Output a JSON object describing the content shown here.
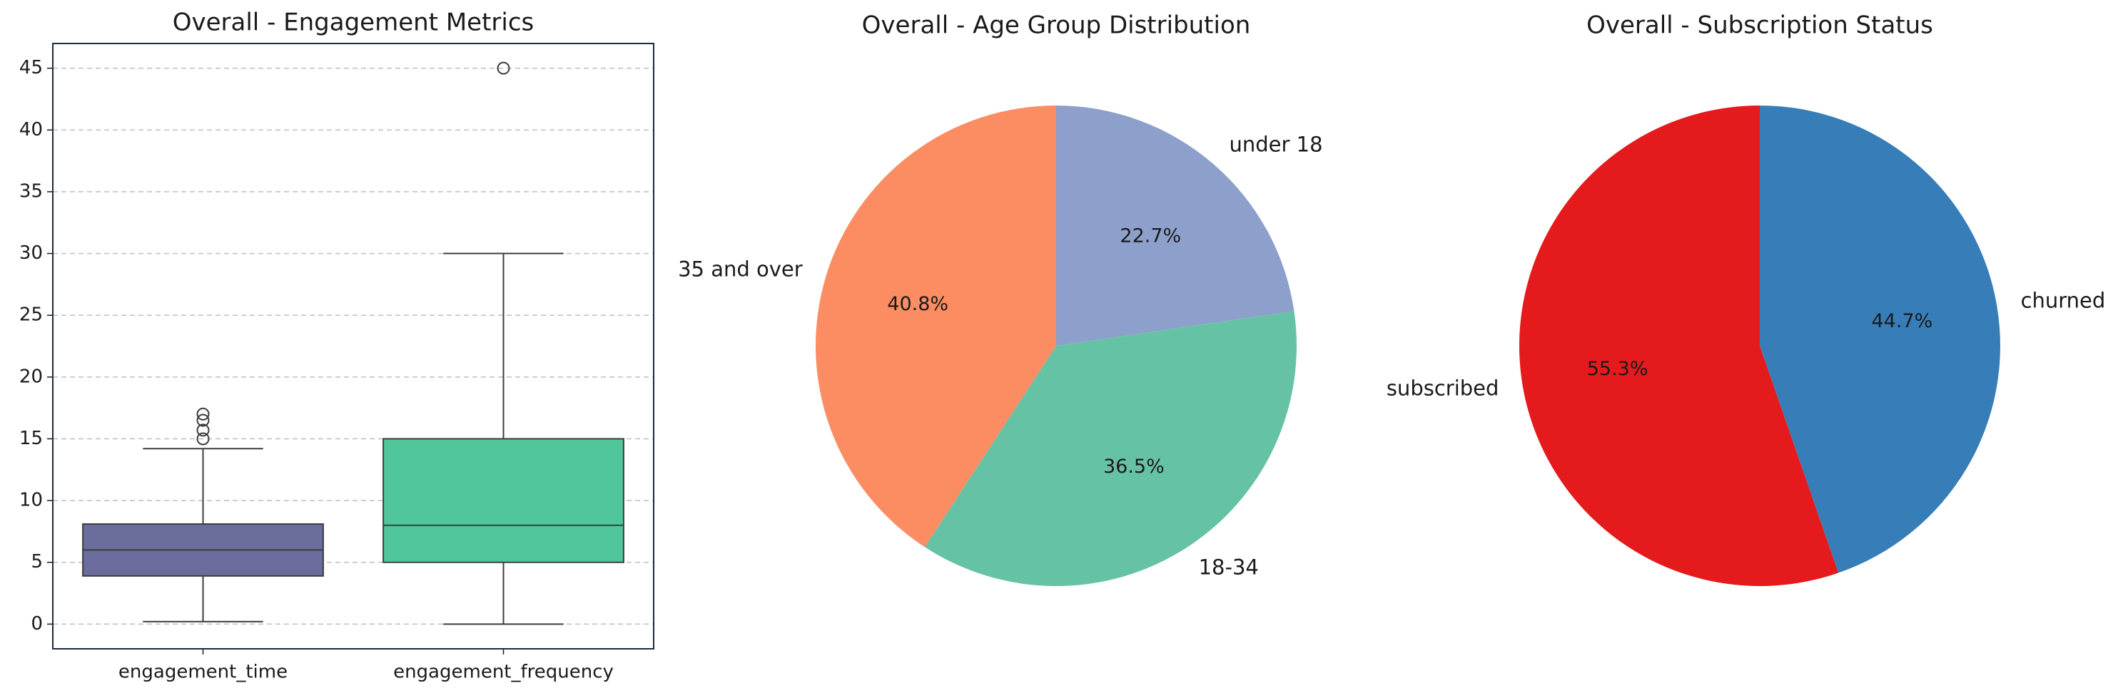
{
  "chart_data": [
    {
      "type": "box",
      "title": "Overall - Engagement Metrics",
      "categories": [
        "engagement_time",
        "engagement_frequency"
      ],
      "ylim": [
        -2,
        47
      ],
      "yticks": [
        0,
        5,
        10,
        15,
        20,
        25,
        30,
        35,
        40,
        45
      ],
      "grid": "y-dashed",
      "series": [
        {
          "category": "engagement_time",
          "color": "#6b6d9c",
          "whisker_low": 0.2,
          "q1": 3.9,
          "median": 6.0,
          "q3": 8.1,
          "whisker_high": 14.2,
          "outliers": [
            15.0,
            15.7,
            16.5,
            17.0
          ]
        },
        {
          "category": "engagement_frequency",
          "color": "#52c69b",
          "whisker_low": 0.0,
          "q1": 5.0,
          "median": 8.0,
          "q3": 15.0,
          "whisker_high": 30.0,
          "outliers": [
            45.0
          ]
        }
      ]
    },
    {
      "type": "pie",
      "title": "Overall - Age Group Distribution",
      "start_angle": 90,
      "direction": "clockwise",
      "slices": [
        {
          "label": "under 18",
          "value": 22.7,
          "pct_label": "22.7%",
          "color": "#8da0cb"
        },
        {
          "label": "18-34",
          "value": 36.5,
          "pct_label": "36.5%",
          "color": "#66c2a5"
        },
        {
          "label": "35 and over",
          "value": 40.8,
          "pct_label": "40.8%",
          "color": "#fc8d62"
        }
      ]
    },
    {
      "type": "pie",
      "title": "Overall - Subscription Status",
      "start_angle": 90,
      "direction": "clockwise",
      "slices": [
        {
          "label": "churned",
          "value": 44.7,
          "pct_label": "44.7%",
          "color": "#377eb8"
        },
        {
          "label": "subscribed",
          "value": 55.3,
          "pct_label": "55.3%",
          "color": "#e41a1c"
        }
      ]
    }
  ]
}
